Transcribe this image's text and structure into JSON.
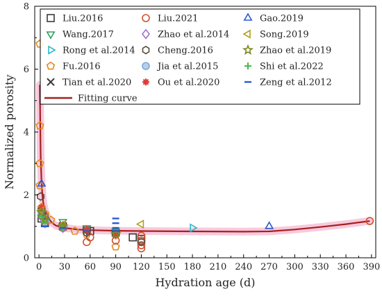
{
  "chart_data": {
    "type": "scatter",
    "title": "",
    "xlabel": "Hydration age (d)",
    "ylabel": "Normalized porosity",
    "xlim": [
      -5,
      395
    ],
    "ylim": [
      0,
      8
    ],
    "xticks": [
      0,
      30,
      60,
      90,
      120,
      150,
      180,
      210,
      240,
      270,
      300,
      330,
      360,
      390
    ],
    "yticks": [
      0,
      2,
      4,
      6,
      8
    ],
    "grid": false,
    "legend_placement": "top-inside",
    "series": [
      {
        "name": "Liu.2016",
        "marker": "square",
        "color": "#3a3a3a",
        "points": [
          [
            3,
            1.25
          ],
          [
            7,
            1.1
          ],
          [
            28,
            1.0
          ],
          [
            56,
            0.9
          ],
          [
            60,
            0.85
          ],
          [
            90,
            0.8
          ],
          [
            110,
            0.65
          ],
          [
            120,
            0.6
          ]
        ]
      },
      {
        "name": "Wang.2017",
        "marker": "triangle-down",
        "color": "#2e9e5e",
        "points": [
          [
            3,
            1.5
          ],
          [
            7,
            1.3
          ],
          [
            28,
            1.15
          ],
          [
            56,
            0.95
          ],
          [
            90,
            0.85
          ]
        ]
      },
      {
        "name": "Rong et al.2014",
        "marker": "triangle-right",
        "color": "#2eb8c8",
        "points": [
          [
            3,
            1.4
          ],
          [
            7,
            1.2
          ],
          [
            28,
            1.0
          ],
          [
            180,
            0.95
          ]
        ]
      },
      {
        "name": "Fu.2016",
        "marker": "pentagon",
        "color": "#e08a1e",
        "points": [
          [
            1,
            6.8
          ],
          [
            1,
            4.2
          ],
          [
            1,
            3.0
          ],
          [
            1,
            2.3
          ],
          [
            3,
            1.6
          ],
          [
            7,
            1.4
          ],
          [
            14,
            1.2
          ],
          [
            28,
            1.0
          ],
          [
            42,
            0.85
          ],
          [
            56,
            0.75
          ],
          [
            90,
            0.35
          ]
        ]
      },
      {
        "name": "Tian et al.2020",
        "marker": "x",
        "color": "#3a3a3a",
        "points": [
          [
            3,
            1.45
          ],
          [
            7,
            1.15
          ],
          [
            28,
            1.0
          ]
        ]
      },
      {
        "name": "Liu.2021",
        "marker": "circle",
        "color": "#d0502e",
        "points": [
          [
            3,
            1.35
          ],
          [
            7,
            1.1
          ],
          [
            28,
            0.95
          ],
          [
            56,
            0.5
          ],
          [
            60,
            0.65
          ],
          [
            90,
            0.55
          ],
          [
            120,
            0.3
          ],
          [
            120,
            0.4
          ],
          [
            120,
            0.55
          ],
          [
            120,
            0.7
          ],
          [
            388,
            1.17
          ]
        ]
      },
      {
        "name": "Zhao et al.2014",
        "marker": "diamond",
        "color": "#a070d0",
        "points": [
          [
            3,
            1.3
          ],
          [
            7,
            1.1
          ],
          [
            28,
            0.95
          ]
        ]
      },
      {
        "name": "Cheng.2016",
        "marker": "hexagon",
        "color": "#5a4a3a",
        "points": [
          [
            2,
            1.95
          ],
          [
            3,
            1.5
          ],
          [
            7,
            1.25
          ],
          [
            28,
            1.0
          ],
          [
            56,
            0.8
          ],
          [
            120,
            0.5
          ]
        ]
      },
      {
        "name": "Jia et al.2015",
        "marker": "circle-filled",
        "color": "#7aa8d8",
        "points": [
          [
            3,
            1.45
          ],
          [
            7,
            1.2
          ],
          [
            28,
            1.0
          ]
        ]
      },
      {
        "name": "Ou et al.2020",
        "marker": "asterisk",
        "color": "#e03a3a",
        "points": [
          [
            3,
            1.6
          ],
          [
            7,
            1.35
          ],
          [
            28,
            1.05
          ],
          [
            56,
            0.9
          ],
          [
            90,
            0.7
          ]
        ]
      },
      {
        "name": "Gao.2019",
        "marker": "triangle-up",
        "color": "#2a5ad0",
        "points": [
          [
            3,
            2.35
          ],
          [
            7,
            1.3
          ],
          [
            270,
            1.0
          ]
        ]
      },
      {
        "name": "Song.2019",
        "marker": "triangle-left",
        "color": "#b0a01e",
        "points": [
          [
            3,
            1.5
          ],
          [
            7,
            1.25
          ],
          [
            28,
            1.05
          ],
          [
            120,
            1.07
          ]
        ]
      },
      {
        "name": "Zhao et al.2019",
        "marker": "star",
        "color": "#7a8a1e",
        "points": [
          [
            3,
            1.45
          ],
          [
            7,
            1.2
          ],
          [
            28,
            1.0
          ],
          [
            90,
            0.75
          ]
        ]
      },
      {
        "name": "Shi et al.2022",
        "marker": "plus",
        "color": "#4ab84a",
        "points": [
          [
            3,
            1.3
          ],
          [
            7,
            1.1
          ],
          [
            28,
            0.95
          ]
        ]
      },
      {
        "name": "Zeng et al.2012",
        "marker": "dash",
        "color": "#2a5ad0",
        "points": [
          [
            7,
            1.0
          ],
          [
            28,
            0.95
          ],
          [
            56,
            0.85
          ],
          [
            90,
            1.25
          ],
          [
            90,
            1.1
          ],
          [
            90,
            0.95
          ],
          [
            90,
            0.85
          ]
        ]
      }
    ],
    "fitting_curve": {
      "name": "Fitting curve",
      "color": "#a42020",
      "band_color": "#f7bfd6",
      "points": [
        [
          1,
          5.5
        ],
        [
          1.5,
          4.2
        ],
        [
          2,
          3.2
        ],
        [
          3,
          2.4
        ],
        [
          4,
          2.0
        ],
        [
          5,
          1.75
        ],
        [
          7,
          1.5
        ],
        [
          10,
          1.3
        ],
        [
          15,
          1.12
        ],
        [
          20,
          1.02
        ],
        [
          30,
          0.95
        ],
        [
          45,
          0.9
        ],
        [
          60,
          0.88
        ],
        [
          90,
          0.86
        ],
        [
          120,
          0.85
        ],
        [
          180,
          0.84
        ],
        [
          240,
          0.83
        ],
        [
          270,
          0.84
        ],
        [
          300,
          0.9
        ],
        [
          330,
          0.98
        ],
        [
          360,
          1.07
        ],
        [
          388,
          1.17
        ]
      ]
    }
  }
}
